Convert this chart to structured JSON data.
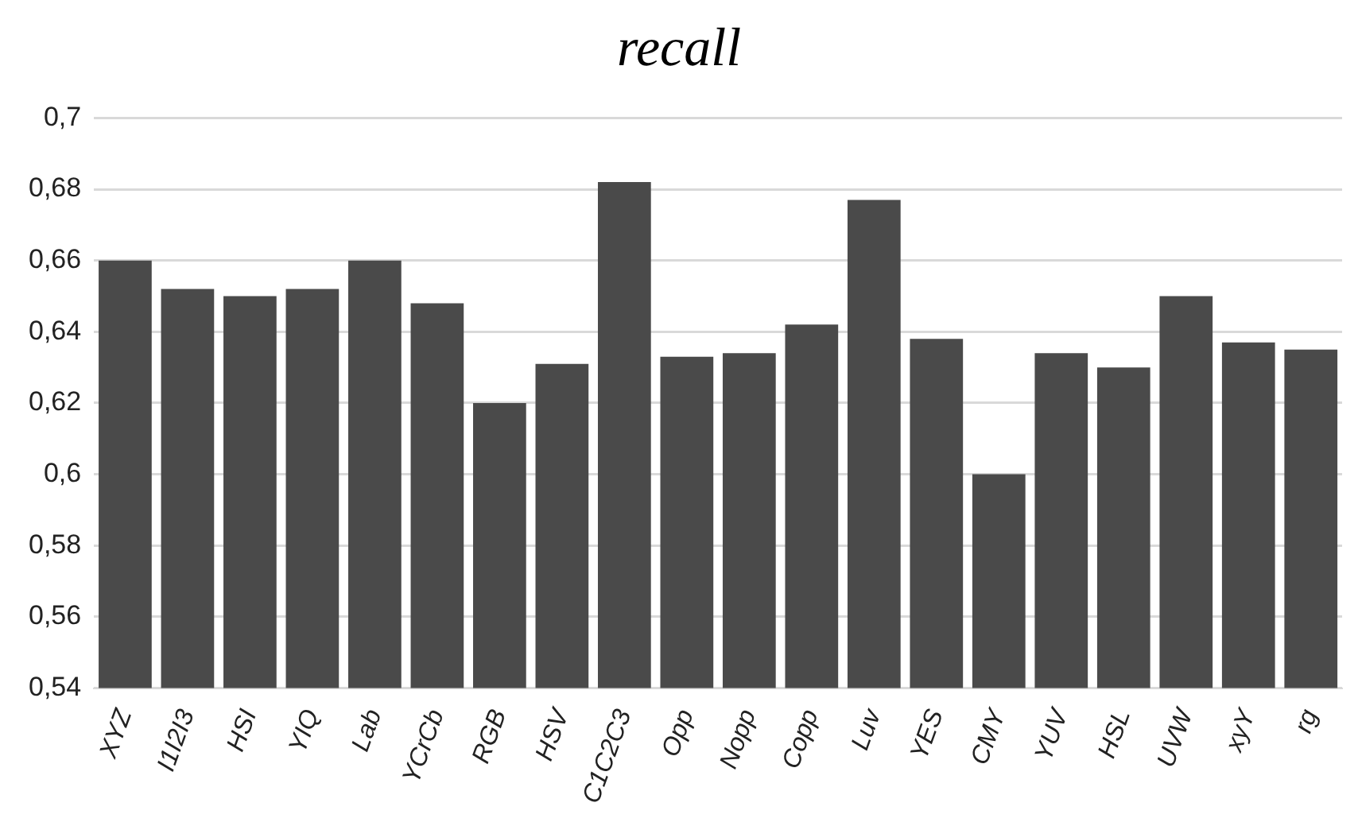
{
  "chart_data": {
    "type": "bar",
    "title": "recall",
    "categories": [
      "XYZ",
      "I1I2I3",
      "HSI",
      "YIQ",
      "Lab",
      "YCrCb",
      "RGB",
      "HSV",
      "C1C2C3",
      "Opp",
      "Nopp",
      "Copp",
      "Luv",
      "YES",
      "CMY",
      "YUV",
      "HSL",
      "UVW",
      "xyY",
      "rg"
    ],
    "values": [
      0.66,
      0.652,
      0.65,
      0.652,
      0.66,
      0.648,
      0.62,
      0.631,
      0.682,
      0.633,
      0.634,
      0.642,
      0.677,
      0.638,
      0.6,
      0.634,
      0.63,
      0.65,
      0.637,
      0.635
    ],
    "color": "#4a4a4a",
    "ylim": [
      0.54,
      0.7
    ],
    "yticks": [
      {
        "value": 0.54,
        "label": "0,54"
      },
      {
        "value": 0.56,
        "label": "0,56"
      },
      {
        "value": 0.58,
        "label": "0,58"
      },
      {
        "value": 0.6,
        "label": "0,6"
      },
      {
        "value": 0.62,
        "label": "0,62"
      },
      {
        "value": 0.64,
        "label": "0,64"
      },
      {
        "value": 0.66,
        "label": "0,66"
      },
      {
        "value": 0.68,
        "label": "0,68"
      },
      {
        "value": 0.7,
        "label": "0,7"
      }
    ],
    "grid": "y",
    "legend": false
  }
}
